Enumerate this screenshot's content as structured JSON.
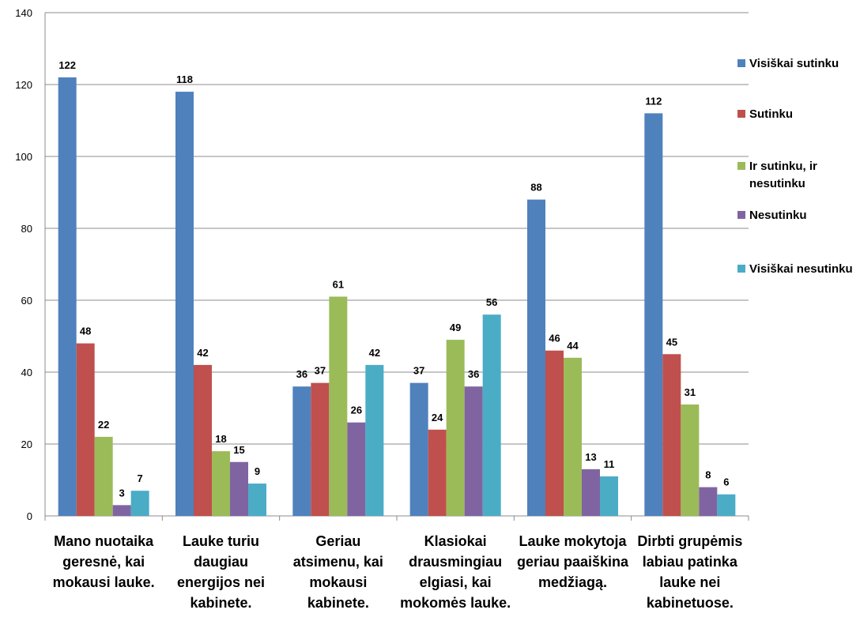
{
  "chart_data": {
    "type": "bar",
    "title": "",
    "xlabel": "",
    "ylabel": "",
    "ylim": [
      0,
      140
    ],
    "yticks": [
      0,
      20,
      40,
      60,
      80,
      100,
      120,
      140
    ],
    "grid": true,
    "legend_position": "right",
    "categories": [
      [
        "Mano nuotaika",
        "geresnė, kai",
        "mokausi lauke."
      ],
      [
        "Lauke turiu",
        "daugiau",
        "energijos nei",
        "kabinete."
      ],
      [
        "Geriau",
        "atsimenu, kai",
        "mokausi",
        "kabinete."
      ],
      [
        "Klasiokai",
        "drausmingiau",
        "elgiasi, kai",
        "mokomės lauke."
      ],
      [
        "Lauke mokytoja",
        "geriau paaiškina",
        "medžiagą."
      ],
      [
        "Dirbti grupėmis",
        "labiau patinka",
        "lauke nei",
        "kabinetuose."
      ]
    ],
    "series": [
      {
        "name": [
          "Visiškai sutinku"
        ],
        "color": "#4F81BD",
        "values": [
          122,
          118,
          36,
          37,
          88,
          112
        ]
      },
      {
        "name": [
          "Sutinku"
        ],
        "color": "#C0504D",
        "values": [
          48,
          42,
          37,
          24,
          46,
          45
        ]
      },
      {
        "name": [
          "Ir sutinku, ir",
          "nesutinku"
        ],
        "color": "#9BBB59",
        "values": [
          22,
          18,
          61,
          49,
          44,
          31
        ]
      },
      {
        "name": [
          "Nesutinku"
        ],
        "color": "#8064A2",
        "values": [
          3,
          15,
          26,
          36,
          13,
          8
        ]
      },
      {
        "name": [
          "Visiškai nesutinku"
        ],
        "color": "#4BACC6",
        "values": [
          7,
          9,
          42,
          56,
          11,
          6
        ]
      }
    ]
  }
}
